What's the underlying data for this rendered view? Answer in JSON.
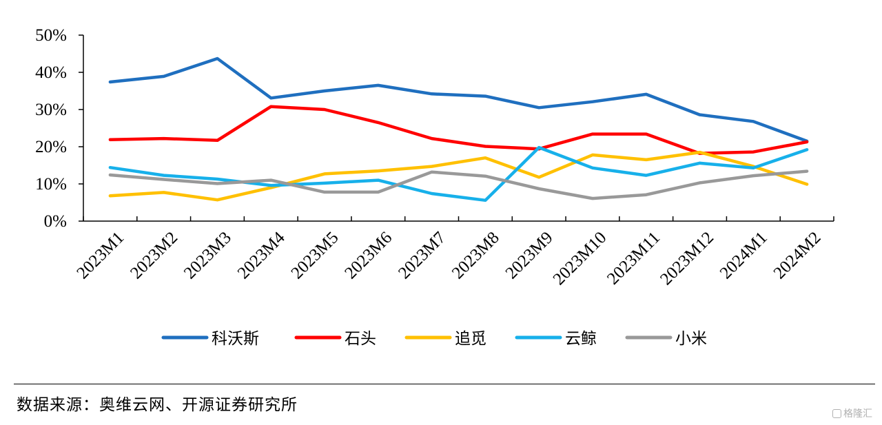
{
  "chart_data": {
    "type": "line",
    "title": "",
    "xlabel": "",
    "ylabel": "",
    "categories": [
      "2023M1",
      "2023M2",
      "2023M3",
      "2023M4",
      "2023M5",
      "2023M6",
      "2023M7",
      "2023M8",
      "2023M9",
      "2023M10",
      "2023M11",
      "2023M12",
      "2024M1",
      "2024M2"
    ],
    "y_ticks": [
      "0%",
      "10%",
      "20%",
      "30%",
      "40%",
      "50%"
    ],
    "ylim": [
      0,
      50
    ],
    "y_unit": "%",
    "grid": false,
    "legend_position": "bottom",
    "series": [
      {
        "name": "科沃斯",
        "color": "#1f6fbf",
        "values": [
          37.4,
          38.9,
          43.7,
          33.1,
          35.0,
          36.5,
          34.2,
          33.6,
          30.5,
          32.1,
          34.1,
          28.6,
          26.8,
          21.5
        ]
      },
      {
        "name": "石头",
        "color": "#ff0000",
        "values": [
          21.9,
          22.2,
          21.7,
          30.8,
          30.0,
          26.5,
          22.2,
          20.1,
          19.4,
          23.4,
          23.4,
          18.2,
          18.6,
          21.3
        ]
      },
      {
        "name": "追觅",
        "color": "#ffc000",
        "values": [
          6.8,
          7.7,
          5.7,
          9.0,
          12.7,
          13.5,
          14.7,
          17.0,
          11.8,
          17.8,
          16.5,
          18.5,
          14.7,
          9.9
        ]
      },
      {
        "name": "云鲸",
        "color": "#17b0ea",
        "values": [
          14.4,
          12.3,
          11.3,
          9.6,
          10.2,
          11.0,
          7.4,
          5.6,
          19.8,
          14.3,
          12.3,
          15.6,
          14.3,
          19.2
        ]
      },
      {
        "name": "小米",
        "color": "#999999",
        "values": [
          12.4,
          11.2,
          10.1,
          11.0,
          7.8,
          7.8,
          13.2,
          12.1,
          8.7,
          6.1,
          7.1,
          10.3,
          12.2,
          13.4
        ]
      }
    ]
  },
  "source": {
    "text": "数据来源：奥维云网、开源证券研究所"
  },
  "watermark": {
    "text": "格隆汇"
  }
}
